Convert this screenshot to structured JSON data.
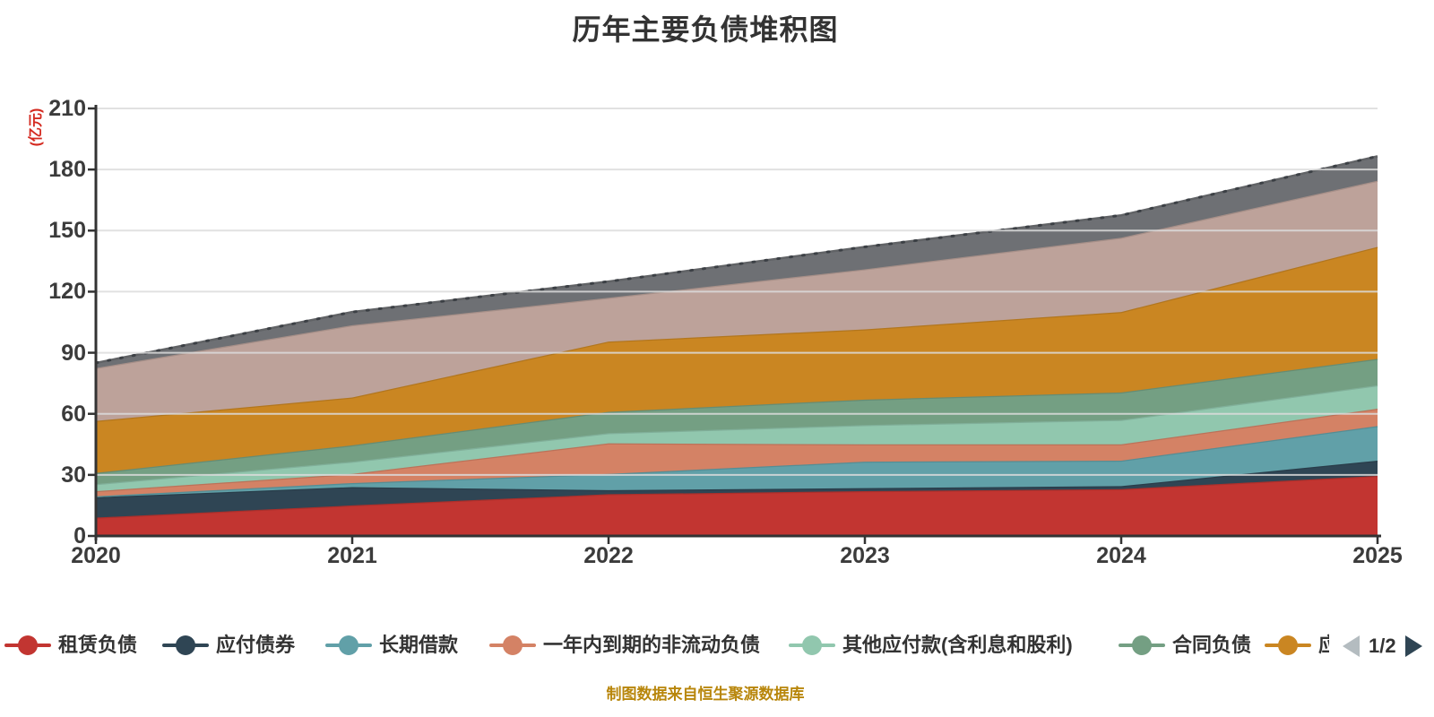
{
  "title": {
    "text": "历年主要负债堆积图"
  },
  "footer": {
    "text": "制图数据来自恒生聚源数据库",
    "color": "#b8860b"
  },
  "y_axis": {
    "name": "(亿元)",
    "name_color": "#d42a20",
    "ticks": [
      "0",
      "30",
      "60",
      "90",
      "120",
      "150",
      "180",
      "210"
    ],
    "min": 0,
    "max": 210,
    "interval": 30
  },
  "x_axis": {
    "labels": [
      "2020",
      "2021",
      "2022",
      "2023",
      "2024",
      "2025"
    ]
  },
  "chart_data": {
    "type": "area",
    "stacked": true,
    "grid": true,
    "legend_position": "bottom",
    "x": [
      "2020",
      "2021",
      "2022",
      "2023",
      "2024",
      "2025"
    ],
    "ylim": [
      0,
      210
    ],
    "series": [
      {
        "name": "租赁负债",
        "color": "#c23531",
        "legend_page": 1,
        "values": [
          9,
          15,
          20.5,
          22,
          23,
          29.5
        ]
      },
      {
        "name": "应付债券",
        "color": "#2f4554",
        "legend_page": 1,
        "values": [
          10,
          9,
          2,
          1.5,
          1.5,
          7.5
        ]
      },
      {
        "name": "长期借款",
        "color": "#61a0a8",
        "legend_page": 1,
        "values": [
          0.5,
          2,
          8,
          13,
          12.5,
          17
        ]
      },
      {
        "name": "一年内到期的非流动负债",
        "color": "#d48265",
        "legend_page": 1,
        "values": [
          2.5,
          4.5,
          15,
          8.5,
          8,
          8.5
        ]
      },
      {
        "name": "其他应付款(含利息和股利)",
        "color": "#91c7ae",
        "legend_page": 1,
        "values": [
          3.5,
          6,
          5,
          9.5,
          12,
          11.5
        ]
      },
      {
        "name": "合同负债",
        "color": "#749f83",
        "legend_page": 1,
        "values": [
          5.5,
          8,
          10.5,
          12.5,
          13.5,
          13
        ]
      },
      {
        "name": "应",
        "label_clipped": true,
        "color": "#ca8622",
        "legend_page": 1,
        "values": [
          25.5,
          23.5,
          34.5,
          34.5,
          39.5,
          55
        ]
      },
      {
        "name": "",
        "label_clipped": true,
        "color": "#bda29a",
        "legend_page": 2,
        "values": [
          26,
          35.5,
          21.5,
          29.5,
          36.5,
          32.5
        ]
      },
      {
        "name": "",
        "label_clipped": true,
        "color": "#6e7074",
        "legend_page": 2,
        "values": [
          2.5,
          6.5,
          8,
          11,
          11,
          12
        ]
      }
    ]
  },
  "legend": {
    "pagination": {
      "current": "1/2",
      "prev_enabled": false,
      "next_enabled": true,
      "prev_color": "#b4bcc0",
      "next_color": "#2f4554"
    }
  }
}
